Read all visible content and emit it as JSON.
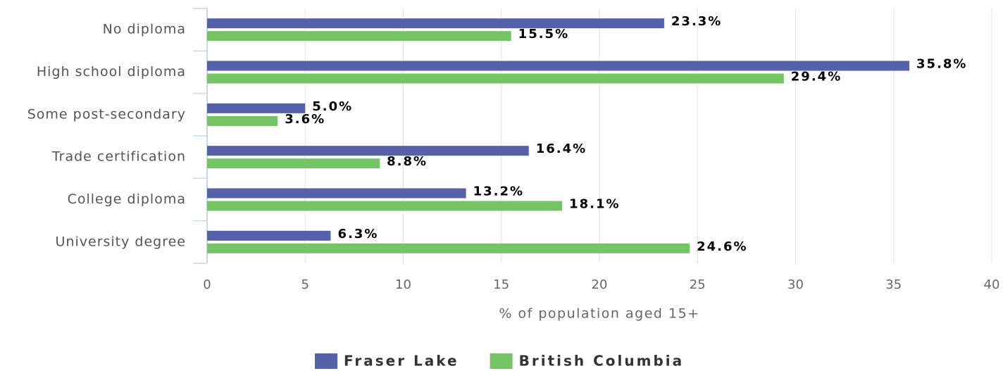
{
  "chart_data": {
    "type": "bar",
    "orientation": "horizontal",
    "categories": [
      "No diploma",
      "High school diploma",
      "Some post-secondary",
      "Trade certification",
      "College diploma",
      "University degree"
    ],
    "series": [
      {
        "name": "Fraser Lake",
        "color": "#5561a8",
        "values": [
          23.3,
          35.8,
          5.0,
          16.4,
          13.2,
          6.3
        ],
        "value_labels": [
          "23.3%",
          "35.8%",
          "5.0%",
          "16.4%",
          "13.2%",
          "6.3%"
        ]
      },
      {
        "name": "British Columbia",
        "color": "#74c365",
        "values": [
          15.5,
          29.4,
          3.6,
          8.8,
          18.1,
          24.6
        ],
        "value_labels": [
          "15.5%",
          "29.4%",
          "3.6%",
          "8.8%",
          "18.1%",
          "24.6%"
        ]
      }
    ],
    "xlabel": "% of population aged 15+",
    "xlim": [
      0,
      40
    ],
    "xticks": [
      0,
      5,
      10,
      15,
      20,
      25,
      30,
      35,
      40
    ],
    "grid": true,
    "legend": "bottom"
  }
}
